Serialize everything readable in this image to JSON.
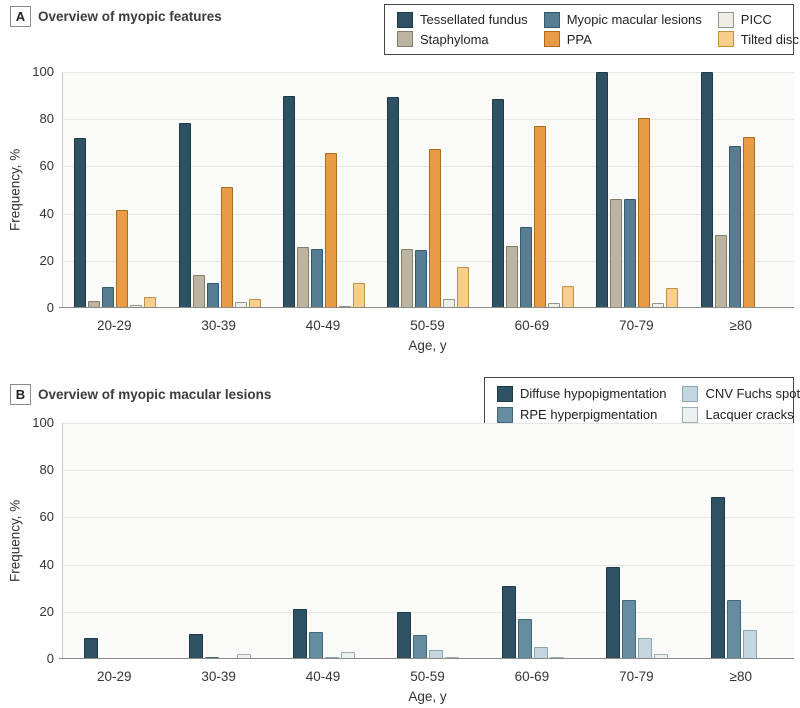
{
  "figure": {
    "panels": [
      {
        "label": "A",
        "title": "Overview of myopic features"
      },
      {
        "label": "B",
        "title": "Overview of myopic macular lesions"
      }
    ]
  },
  "chart_data": [
    {
      "type": "bar",
      "title": "Overview of myopic features",
      "xlabel": "Age, y",
      "ylabel": "Frequency, %",
      "categories": [
        "20-29",
        "30-39",
        "40-49",
        "50-59",
        "60-69",
        "70-79",
        "≥80"
      ],
      "series": [
        {
          "name": "Tessellated fundus",
          "fill": "#2E5263",
          "stroke": "#1C3A47",
          "values": [
            72,
            78.5,
            90,
            89.5,
            88.5,
            100,
            100
          ]
        },
        {
          "name": "Staphyloma",
          "fill": "#BCB3A1",
          "stroke": "#857C69",
          "values": [
            3,
            14,
            26,
            25,
            26.5,
            46,
            31
          ]
        },
        {
          "name": "Myopic macular lesions",
          "fill": "#577D93",
          "stroke": "#35596C",
          "values": [
            9,
            10.5,
            25,
            24.5,
            34.5,
            46,
            68.5
          ]
        },
        {
          "name": "PPA",
          "fill": "#E99B45",
          "stroke": "#AA6A1F",
          "values": [
            41.5,
            51.5,
            65.5,
            67.5,
            77,
            80.5,
            72.5
          ]
        },
        {
          "name": "PICC",
          "fill": "#EEEEE7",
          "stroke": "#95958B",
          "values": [
            1.5,
            2.5,
            1,
            4,
            2,
            2,
            0
          ]
        },
        {
          "name": "Tilted disc",
          "fill": "#F8CE8E",
          "stroke": "#C29040",
          "values": [
            4.5,
            4,
            10.5,
            17.5,
            9.5,
            8.5,
            0
          ]
        }
      ],
      "ylim": [
        0,
        100
      ],
      "yticks": [
        0,
        20,
        40,
        60,
        80,
        100
      ],
      "grid": true,
      "legend_position": "top-right",
      "legend_columns": 3
    },
    {
      "type": "bar",
      "title": "Overview of myopic macular lesions",
      "xlabel": "Age, y",
      "ylabel": "Frequency, %",
      "categories": [
        "20-29",
        "30-39",
        "40-49",
        "50-59",
        "60-69",
        "70-79",
        "≥80"
      ],
      "series": [
        {
          "name": "Diffuse hypopigmentation",
          "fill": "#2E5263",
          "stroke": "#1C3A47",
          "values": [
            9,
            10.5,
            21,
            20,
            31,
            39,
            68.5
          ]
        },
        {
          "name": "RPE hyperpigmentation",
          "fill": "#668CA0",
          "stroke": "#41677A",
          "values": [
            0,
            1,
            11.5,
            10,
            17,
            25,
            25
          ]
        },
        {
          "name": "CNV Fuchs spot",
          "fill": "#C4D7E0",
          "stroke": "#8BA4B1",
          "values": [
            0,
            0,
            1,
            4,
            5,
            9,
            12.5
          ]
        },
        {
          "name": "Lacquer cracks",
          "fill": "#EBF1F1",
          "stroke": "#9FACB1",
          "values": [
            0,
            2,
            3,
            1,
            1,
            2,
            0
          ]
        }
      ],
      "ylim": [
        0,
        100
      ],
      "yticks": [
        0,
        20,
        40,
        60,
        80,
        100
      ],
      "grid": true,
      "legend_position": "top-right",
      "legend_columns": 2
    }
  ]
}
